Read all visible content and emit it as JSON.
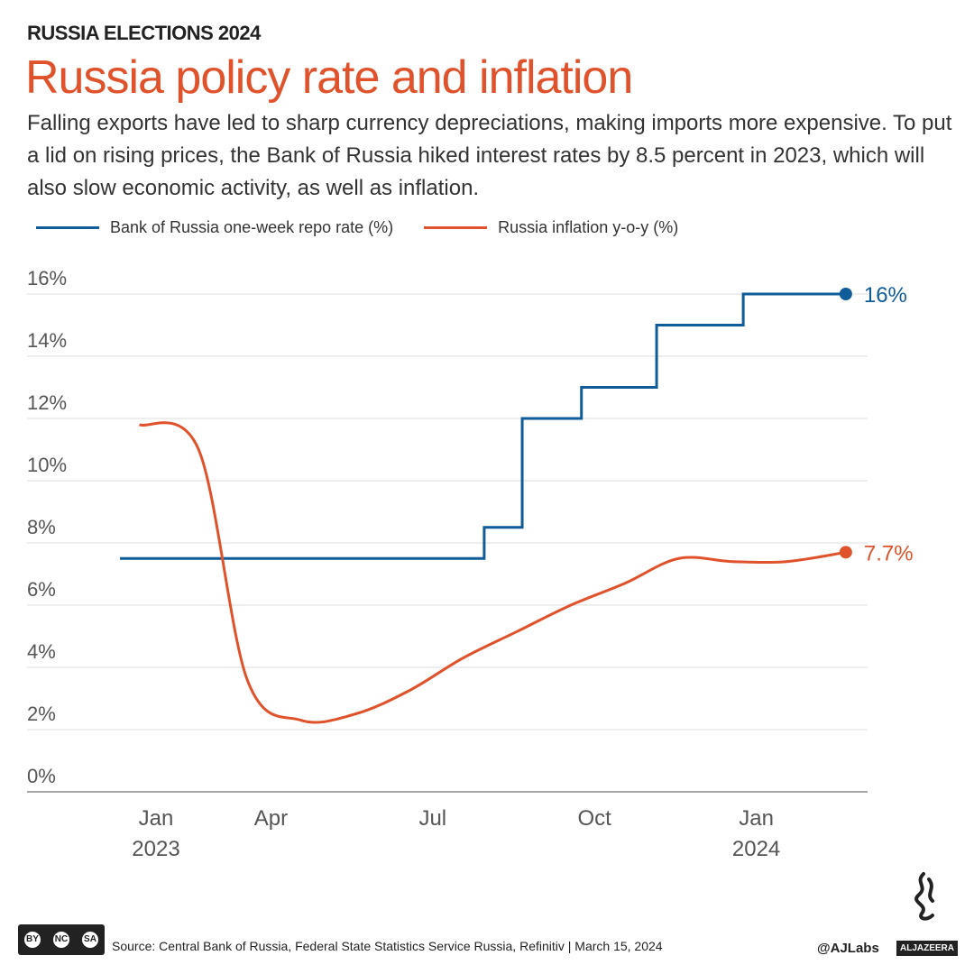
{
  "header": {
    "kicker": "RUSSIA ELECTIONS 2024",
    "title": "Russia policy rate and inflation",
    "subtitle": "Falling exports have led to sharp currency depreciations, making imports more expensive. To put a lid on rising prices, the Bank of Russia hiked interest rates by 8.5 percent in 2023, which will also slow economic activity, as well as inflation."
  },
  "colors": {
    "repo": "#0f5c99",
    "inflation": "#e0522b",
    "title": "#e0522b"
  },
  "chart_data": {
    "type": "line",
    "ylim": [
      0,
      16
    ],
    "grid": true,
    "legend_placement": "top-left",
    "y_ticks": [
      "0%",
      "2%",
      "4%",
      "6%",
      "8%",
      "10%",
      "12%",
      "14%",
      "16%"
    ],
    "x_ticks": [
      {
        "date": "2023-01-01",
        "label": [
          "Jan",
          "2023"
        ]
      },
      {
        "date": "2023-04-01",
        "label": [
          "Apr"
        ]
      },
      {
        "date": "2023-07-01",
        "label": [
          "Jul"
        ]
      },
      {
        "date": "2023-10-01",
        "label": [
          "Oct"
        ]
      },
      {
        "date": "2024-01-01",
        "label": [
          "Jan",
          "2024"
        ]
      }
    ],
    "series": [
      {
        "name": "Bank of Russia one-week repo rate (%)",
        "shape": "step",
        "end_label": "16%",
        "points": [
          {
            "x": "2023-01-01",
            "y": 7.5
          },
          {
            "x": "2023-07-24",
            "y": 8.5
          },
          {
            "x": "2023-08-15",
            "y": 12
          },
          {
            "x": "2023-09-18",
            "y": 13
          },
          {
            "x": "2023-10-30",
            "y": 15
          },
          {
            "x": "2023-12-18",
            "y": 16
          },
          {
            "x": "2024-02-15",
            "y": 16
          }
        ]
      },
      {
        "name": "Russia inflation y-o-y (%)",
        "shape": "smooth",
        "end_label": "7.7%",
        "points": [
          {
            "x": "2023-01-12",
            "y": 11.8
          },
          {
            "x": "2023-02-15",
            "y": 11.0
          },
          {
            "x": "2023-03-12",
            "y": 3.6
          },
          {
            "x": "2023-04-12",
            "y": 2.3
          },
          {
            "x": "2023-05-12",
            "y": 2.5
          },
          {
            "x": "2023-06-12",
            "y": 3.25
          },
          {
            "x": "2023-07-12",
            "y": 4.3
          },
          {
            "x": "2023-08-12",
            "y": 5.15
          },
          {
            "x": "2023-09-12",
            "y": 6.0
          },
          {
            "x": "2023-10-12",
            "y": 6.7
          },
          {
            "x": "2023-11-12",
            "y": 7.5
          },
          {
            "x": "2023-12-12",
            "y": 7.4
          },
          {
            "x": "2024-01-12",
            "y": 7.4
          },
          {
            "x": "2024-02-15",
            "y": 7.7
          }
        ]
      }
    ]
  },
  "footer": {
    "cc_labels": [
      "BY",
      "NC",
      "SA"
    ],
    "source": "Source:  Central Bank of Russia, Federal State Statistics Service Russia, Refinitiv  |  March 15, 2024",
    "handle": "@AJLabs",
    "logo": "ALJAZEERA"
  }
}
